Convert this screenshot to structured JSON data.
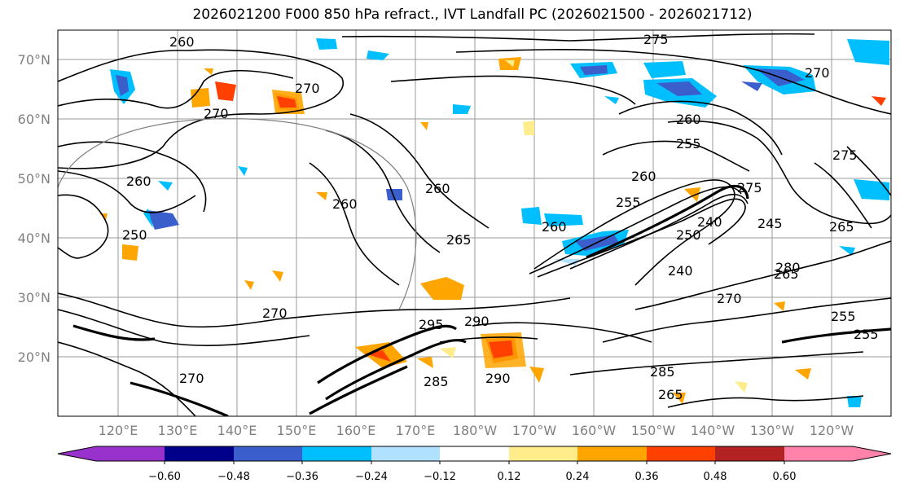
{
  "title": "2026021200 F000 850 hPa refract., IVT Landfall PC (2026021500 - 2026021712)",
  "map": {
    "lat_labels": [
      "70°N",
      "60°N",
      "50°N",
      "40°N",
      "30°N",
      "20°N"
    ],
    "lon_labels": [
      "120°E",
      "130°E",
      "140°E",
      "150°E",
      "160°E",
      "170°E",
      "180°W",
      "170°W",
      "160°W",
      "150°W",
      "140°W",
      "130°W",
      "120°W"
    ],
    "contour_labels": [
      "260",
      "275",
      "270",
      "270",
      "270",
      "260",
      "260",
      "255",
      "260",
      "260",
      "260",
      "265",
      "260",
      "255",
      "275",
      "250",
      "240",
      "240",
      "270",
      "265",
      "265",
      "270",
      "255",
      "255",
      "275",
      "285",
      "285",
      "295",
      "290",
      "280",
      "265",
      "270",
      "250",
      "245",
      "290"
    ]
  },
  "colorbar": {
    "tick_labels": [
      "−0.60",
      "−0.48",
      "−0.36",
      "−0.24",
      "−0.12",
      "0.12",
      "0.24",
      "0.36",
      "0.48",
      "0.60"
    ],
    "colors": [
      "#9932cc",
      "#00008b",
      "#3a5fcd",
      "#00bfff",
      "#b0e2ff",
      "#ffffff",
      "#ffec8b",
      "#ffa500",
      "#ff4000",
      "#b22222",
      "#ff82ab"
    ]
  }
}
